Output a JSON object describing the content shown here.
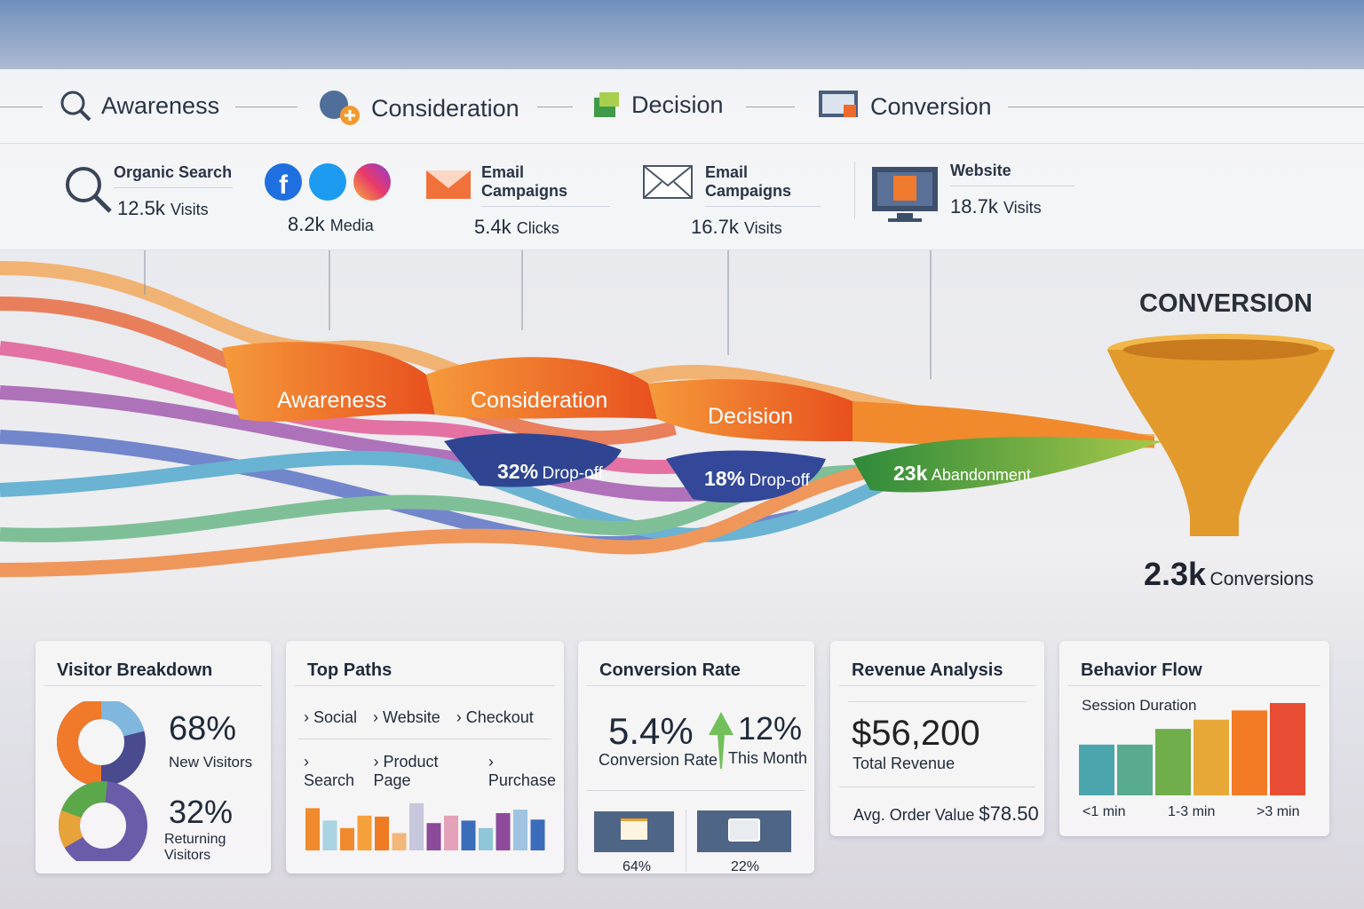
{
  "stages": [
    {
      "label": "Awareness",
      "icon": "magnifier-icon"
    },
    {
      "label": "Consideration",
      "icon": "user-plus-icon"
    },
    {
      "label": "Decision",
      "icon": "cube-icon"
    },
    {
      "label": "Conversion",
      "icon": "monitor-cart-icon"
    }
  ],
  "sources": [
    {
      "label": "Organic Search",
      "value": "12.5k",
      "unit": "Visits",
      "icon": "search-icon"
    },
    {
      "label": "",
      "value": "8.2k",
      "unit": "Media",
      "icon": "social-icons"
    },
    {
      "label": "Email Campaigns",
      "value": "5.4k",
      "unit": "Clicks",
      "icon": "envelope-open-icon"
    },
    {
      "label": "Email Campaigns",
      "value": "16.7k",
      "unit": "Visits",
      "icon": "envelope-icon"
    },
    {
      "label": "Website",
      "value": "18.7k",
      "unit": "Visits",
      "icon": "monitor-icon"
    }
  ],
  "flow": {
    "labels": [
      "Awareness",
      "Consideration",
      "Decision"
    ],
    "dropoffs": [
      {
        "value": "32%",
        "text": "Drop-off"
      },
      {
        "value": "18%",
        "text": "Drop-off"
      },
      {
        "value": "23k",
        "text": "Abandonment"
      }
    ],
    "conversion_title": "CONVERSION",
    "conversions_value": "2.3k",
    "conversions_label": "Conversions"
  },
  "visitor": {
    "title": "Visitor Breakdown",
    "new_pct": "68%",
    "new_label": "New Visitors",
    "ret_pct": "32%",
    "ret_label": "Returning Visitors"
  },
  "paths": {
    "title": "Top Paths",
    "rows": [
      [
        "Social",
        "Website",
        "Checkout"
      ],
      [
        "Search",
        "Product Page",
        "Purchase"
      ]
    ],
    "bars": [
      {
        "v": 0.85,
        "c": "#f08a2c"
      },
      {
        "v": 0.6,
        "c": "#a9d3e0"
      },
      {
        "v": 0.45,
        "c": "#f08a2c"
      },
      {
        "v": 0.7,
        "c": "#f5a03a"
      },
      {
        "v": 0.68,
        "c": "#ef7b22"
      },
      {
        "v": 0.35,
        "c": "#f3b77a"
      },
      {
        "v": 0.95,
        "c": "#c7c7dd"
      },
      {
        "v": 0.55,
        "c": "#8c4a9b"
      },
      {
        "v": 0.7,
        "c": "#e3a2b8"
      },
      {
        "v": 0.6,
        "c": "#3b6dbb"
      },
      {
        "v": 0.45,
        "c": "#8fc6d8"
      },
      {
        "v": 0.75,
        "c": "#8c4a9b"
      },
      {
        "v": 0.82,
        "c": "#9fc3e0"
      },
      {
        "v": 0.62,
        "c": "#3b6dbb"
      }
    ]
  },
  "conv": {
    "title": "Conversion Rate",
    "rate": "5.4%",
    "rate_label": "Conversion Rate",
    "change": "12%",
    "change_label": "This Month",
    "tiles": [
      {
        "value": "64%",
        "icon": "chat-icon"
      },
      {
        "value": "22%",
        "icon": "screen-icon"
      }
    ]
  },
  "revenue": {
    "title": "Revenue Analysis",
    "total": "$56,200",
    "total_label": "Total Revenue",
    "aov_label": "Avg. Order Value",
    "aov": "$78.50"
  },
  "behavior": {
    "title": "Behavior Flow",
    "subtitle": "Session Duration",
    "axis": [
      "<1 min",
      "1-3 min",
      ">3 min"
    ],
    "bars": [
      {
        "v": 0.55,
        "c": "#4aa5ad"
      },
      {
        "v": 0.55,
        "c": "#58ab8f"
      },
      {
        "v": 0.72,
        "c": "#6fae4a"
      },
      {
        "v": 0.82,
        "c": "#e8a838"
      },
      {
        "v": 0.92,
        "c": "#f47b25"
      },
      {
        "v": 1.0,
        "c": "#e84c33"
      }
    ]
  }
}
